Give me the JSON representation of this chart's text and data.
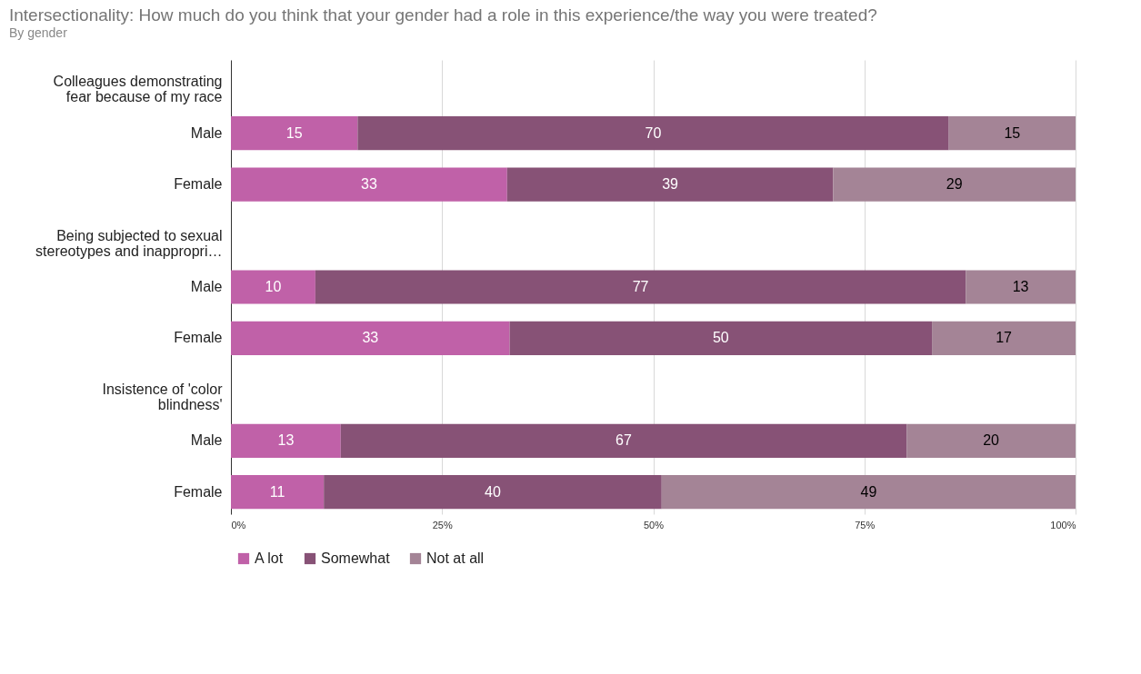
{
  "chart_data": {
    "type": "bar",
    "orientation": "horizontal",
    "stacked": true,
    "title": "Intersectionality: How much do you think that your gender had a role in this experience/the way you were treated?",
    "subtitle": "By gender",
    "categories": [
      "Colleagues demonstrating fear because of my race",
      "Male",
      "Female",
      "Being subjected to sexual stereotypes and inappropri…",
      "Male",
      "Female",
      "Insistence of 'color blindness'",
      "Male",
      "Female"
    ],
    "series": [
      {
        "name": "A lot",
        "color": "#c061a8",
        "values": [
          null,
          15,
          32.7,
          null,
          10,
          33,
          null,
          13,
          11
        ],
        "value_labels": [
          null,
          "15",
          "33",
          null,
          "10",
          "33",
          null,
          "13",
          "11"
        ]
      },
      {
        "name": "Somewhat",
        "color": "#875276",
        "values": [
          null,
          70,
          38.6,
          null,
          77,
          50,
          null,
          67,
          40
        ],
        "value_labels": [
          null,
          "70",
          "39",
          null,
          "77",
          "50",
          null,
          "67",
          "40"
        ]
      },
      {
        "name": "Not at all",
        "color": "#a48496",
        "values": [
          null,
          15,
          28.7,
          null,
          13,
          17,
          null,
          20,
          49
        ],
        "value_labels": [
          null,
          "15",
          "29",
          null,
          "13",
          "17",
          null,
          "20",
          "49"
        ]
      }
    ],
    "xlim": [
      0,
      100
    ],
    "xticks": [
      {
        "value": 0,
        "label": "0%"
      },
      {
        "value": 25,
        "label": "25%"
      },
      {
        "value": 50,
        "label": "50%"
      },
      {
        "value": 75,
        "label": "75%"
      },
      {
        "value": 100,
        "label": "100%"
      }
    ],
    "grid": "x",
    "legend": "bottom"
  }
}
